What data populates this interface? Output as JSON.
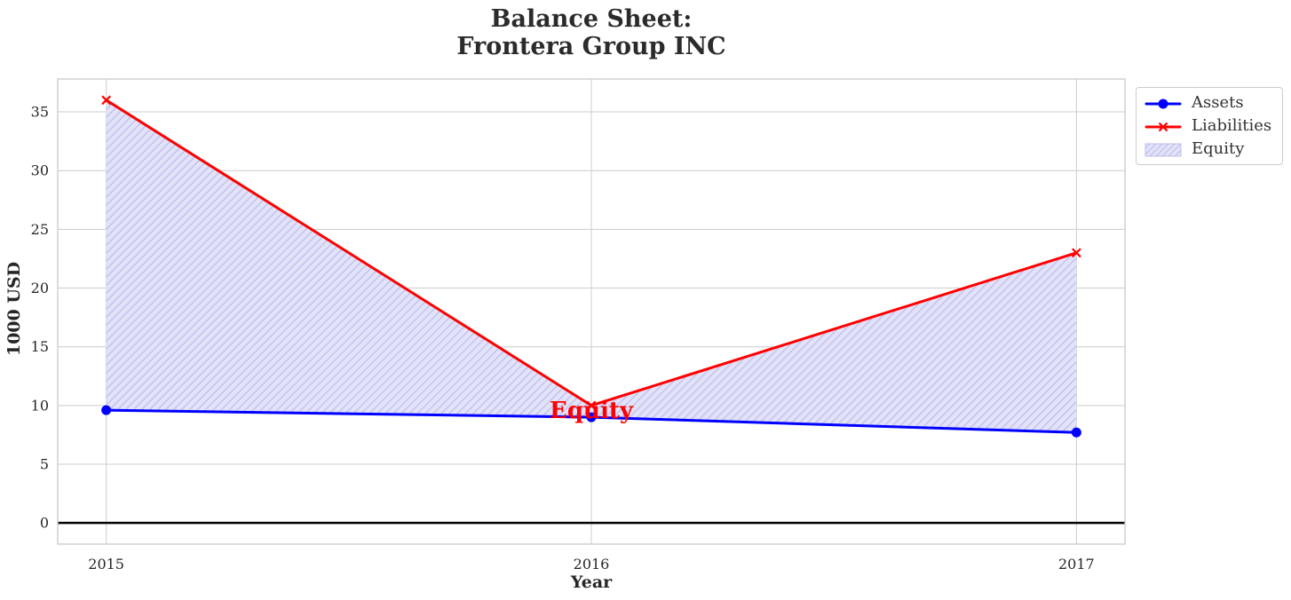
{
  "chart_data": {
    "type": "line",
    "title": "Balance Sheet:\nFrontera Group INC",
    "xlabel": "Year",
    "ylabel": "1000 USD",
    "x": [
      2015,
      2016,
      2017
    ],
    "xticklabels": [
      "2015",
      "2016",
      "2017"
    ],
    "yticks": [
      0,
      5,
      10,
      15,
      20,
      25,
      30,
      35
    ],
    "xlim": [
      2014.9,
      2017.1
    ],
    "ylim": [
      -1.8,
      37.8
    ],
    "grid": true,
    "series": [
      {
        "name": "Assets",
        "color": "#0000ff",
        "marker": "circle",
        "values": [
          9.6,
          9.0,
          7.7
        ]
      },
      {
        "name": "Liabilities",
        "color": "#ff0000",
        "marker": "x",
        "values": [
          36,
          10,
          23
        ]
      }
    ],
    "fill_between": {
      "name": "Equity",
      "between": [
        "Liabilities",
        "Assets"
      ],
      "facecolor": "#e2e2f8",
      "hatchcolor": "#bdbdee",
      "hatch": "//"
    },
    "annotation": {
      "text": "Equity",
      "x": 2016,
      "y": 9.5,
      "color": "#ff0000"
    },
    "zero_line": {
      "y": 0,
      "color": "#000000"
    },
    "legend_position": "outside-upper-right"
  },
  "colors": {
    "grid": "#cccccc",
    "spine": "#c9c9c9",
    "text": "#262626",
    "background": "#ffffff"
  }
}
